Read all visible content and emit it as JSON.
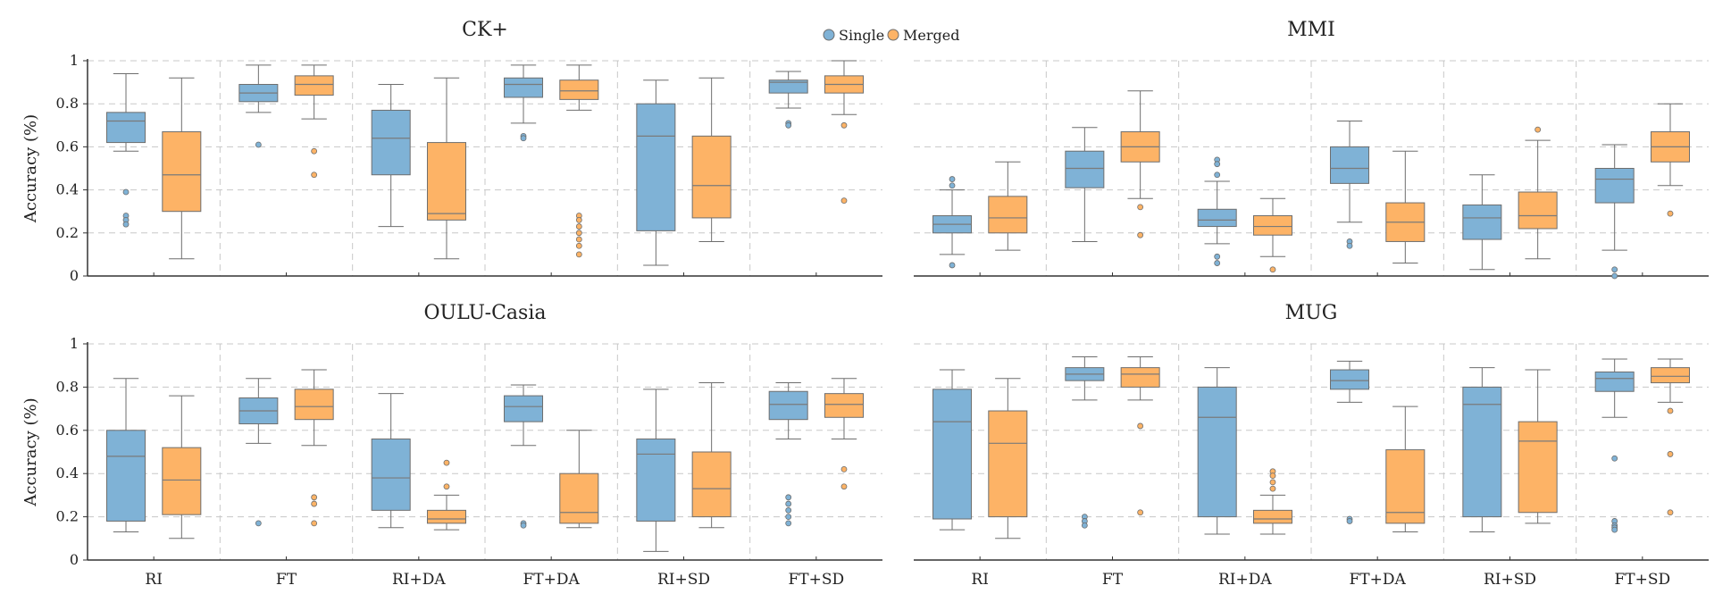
{
  "legend": [
    {
      "label": "Single",
      "color": "#7fb2d6"
    },
    {
      "label": "Merged",
      "color": "#fdb366"
    }
  ],
  "colors": {
    "single_fill": "#7fb2d6",
    "merged_fill": "#fdb366",
    "box_stroke": "#6e6e6e",
    "grid": "#c8c8c8",
    "axis": "#333333"
  },
  "chart_data": [
    {
      "type": "box",
      "title": "CK+",
      "ylabel": "Accuracy (%)",
      "ylim": [
        0,
        1
      ],
      "yticks": [
        "0",
        "0.2",
        "0.4",
        "0.6",
        "0.8",
        "1"
      ],
      "grid": true,
      "categories": [
        "RI",
        "FT",
        "RI+DA",
        "FT+DA",
        "RI+SD",
        "FT+SD"
      ],
      "series": [
        {
          "name": "Single",
          "boxes": [
            {
              "min": 0.58,
              "q1": 0.62,
              "median": 0.72,
              "q3": 0.76,
              "max": 0.94,
              "outliers": [
                0.39,
                0.28,
                0.26,
                0.24
              ]
            },
            {
              "min": 0.76,
              "q1": 0.81,
              "median": 0.85,
              "q3": 0.89,
              "max": 0.98,
              "outliers": [
                0.61
              ]
            },
            {
              "min": 0.23,
              "q1": 0.47,
              "median": 0.64,
              "q3": 0.77,
              "max": 0.89,
              "outliers": []
            },
            {
              "min": 0.71,
              "q1": 0.83,
              "median": 0.89,
              "q3": 0.92,
              "max": 0.98,
              "outliers": [
                0.65,
                0.64
              ]
            },
            {
              "min": 0.05,
              "q1": 0.21,
              "median": 0.65,
              "q3": 0.8,
              "max": 0.91,
              "outliers": []
            },
            {
              "min": 0.78,
              "q1": 0.85,
              "median": 0.9,
              "q3": 0.91,
              "max": 0.95,
              "outliers": [
                0.71,
                0.7
              ]
            }
          ]
        },
        {
          "name": "Merged",
          "boxes": [
            {
              "min": 0.08,
              "q1": 0.3,
              "median": 0.47,
              "q3": 0.67,
              "max": 0.92,
              "outliers": []
            },
            {
              "min": 0.73,
              "q1": 0.84,
              "median": 0.89,
              "q3": 0.93,
              "max": 0.98,
              "outliers": [
                0.58,
                0.47
              ]
            },
            {
              "min": 0.08,
              "q1": 0.26,
              "median": 0.29,
              "q3": 0.62,
              "max": 0.92,
              "outliers": []
            },
            {
              "min": 0.77,
              "q1": 0.82,
              "median": 0.86,
              "q3": 0.91,
              "max": 0.98,
              "outliers": [
                0.28,
                0.26,
                0.23,
                0.2,
                0.17,
                0.14,
                0.1
              ]
            },
            {
              "min": 0.16,
              "q1": 0.27,
              "median": 0.42,
              "q3": 0.65,
              "max": 0.92,
              "outliers": []
            },
            {
              "min": 0.75,
              "q1": 0.85,
              "median": 0.89,
              "q3": 0.93,
              "max": 1.0,
              "outliers": [
                0.7,
                0.35
              ]
            }
          ]
        }
      ]
    },
    {
      "type": "box",
      "title": "MMI",
      "ylabel": "",
      "ylim": [
        0,
        1
      ],
      "yticks": [],
      "grid": true,
      "categories": [
        "RI",
        "FT",
        "RI+DA",
        "FT+DA",
        "RI+SD",
        "FT+SD"
      ],
      "series": [
        {
          "name": "Single",
          "boxes": [
            {
              "min": 0.1,
              "q1": 0.2,
              "median": 0.24,
              "q3": 0.28,
              "max": 0.4,
              "outliers": [
                0.45,
                0.42,
                0.05
              ]
            },
            {
              "min": 0.16,
              "q1": 0.41,
              "median": 0.5,
              "q3": 0.58,
              "max": 0.69,
              "outliers": []
            },
            {
              "min": 0.15,
              "q1": 0.23,
              "median": 0.26,
              "q3": 0.31,
              "max": 0.44,
              "outliers": [
                0.54,
                0.52,
                0.47,
                0.09,
                0.06
              ]
            },
            {
              "min": 0.25,
              "q1": 0.43,
              "median": 0.5,
              "q3": 0.6,
              "max": 0.72,
              "outliers": [
                0.16,
                0.14
              ]
            },
            {
              "min": 0.03,
              "q1": 0.17,
              "median": 0.27,
              "q3": 0.33,
              "max": 0.47,
              "outliers": []
            },
            {
              "min": 0.12,
              "q1": 0.34,
              "median": 0.45,
              "q3": 0.5,
              "max": 0.61,
              "outliers": [
                0.03,
                0.0
              ]
            }
          ]
        },
        {
          "name": "Merged",
          "boxes": [
            {
              "min": 0.12,
              "q1": 0.2,
              "median": 0.27,
              "q3": 0.37,
              "max": 0.53,
              "outliers": []
            },
            {
              "min": 0.36,
              "q1": 0.53,
              "median": 0.6,
              "q3": 0.67,
              "max": 0.86,
              "outliers": [
                0.32,
                0.19
              ]
            },
            {
              "min": 0.09,
              "q1": 0.19,
              "median": 0.23,
              "q3": 0.28,
              "max": 0.36,
              "outliers": [
                0.03
              ]
            },
            {
              "min": 0.06,
              "q1": 0.16,
              "median": 0.25,
              "q3": 0.34,
              "max": 0.58,
              "outliers": []
            },
            {
              "min": 0.08,
              "q1": 0.22,
              "median": 0.28,
              "q3": 0.39,
              "max": 0.63,
              "outliers": [
                0.68
              ]
            },
            {
              "min": 0.42,
              "q1": 0.53,
              "median": 0.6,
              "q3": 0.67,
              "max": 0.8,
              "outliers": [
                0.29
              ]
            }
          ]
        }
      ]
    },
    {
      "type": "box",
      "title": "OULU-Casia",
      "ylabel": "Accuracy (%)",
      "ylim": [
        0,
        1
      ],
      "yticks": [
        "0",
        "0.2",
        "0.4",
        "0.6",
        "0.8",
        "1"
      ],
      "grid": true,
      "categories": [
        "RI",
        "FT",
        "RI+DA",
        "FT+DA",
        "RI+SD",
        "FT+SD"
      ],
      "series": [
        {
          "name": "Single",
          "boxes": [
            {
              "min": 0.13,
              "q1": 0.18,
              "median": 0.48,
              "q3": 0.6,
              "max": 0.84,
              "outliers": []
            },
            {
              "min": 0.54,
              "q1": 0.63,
              "median": 0.69,
              "q3": 0.75,
              "max": 0.84,
              "outliers": [
                0.17
              ]
            },
            {
              "min": 0.15,
              "q1": 0.23,
              "median": 0.38,
              "q3": 0.56,
              "max": 0.77,
              "outliers": []
            },
            {
              "min": 0.53,
              "q1": 0.64,
              "median": 0.71,
              "q3": 0.76,
              "max": 0.81,
              "outliers": [
                0.17,
                0.16
              ]
            },
            {
              "min": 0.04,
              "q1": 0.18,
              "median": 0.49,
              "q3": 0.56,
              "max": 0.79,
              "outliers": []
            },
            {
              "min": 0.56,
              "q1": 0.65,
              "median": 0.72,
              "q3": 0.78,
              "max": 0.82,
              "outliers": [
                0.29,
                0.26,
                0.23,
                0.2,
                0.17
              ]
            }
          ]
        },
        {
          "name": "Merged",
          "boxes": [
            {
              "min": 0.1,
              "q1": 0.21,
              "median": 0.37,
              "q3": 0.52,
              "max": 0.76,
              "outliers": []
            },
            {
              "min": 0.53,
              "q1": 0.65,
              "median": 0.71,
              "q3": 0.79,
              "max": 0.88,
              "outliers": [
                0.29,
                0.26,
                0.17
              ]
            },
            {
              "min": 0.14,
              "q1": 0.17,
              "median": 0.19,
              "q3": 0.23,
              "max": 0.3,
              "outliers": [
                0.45,
                0.34
              ]
            },
            {
              "min": 0.15,
              "q1": 0.17,
              "median": 0.22,
              "q3": 0.4,
              "max": 0.6,
              "outliers": []
            },
            {
              "min": 0.15,
              "q1": 0.2,
              "median": 0.33,
              "q3": 0.5,
              "max": 0.82,
              "outliers": []
            },
            {
              "min": 0.56,
              "q1": 0.66,
              "median": 0.72,
              "q3": 0.77,
              "max": 0.84,
              "outliers": [
                0.42,
                0.34
              ]
            }
          ]
        }
      ]
    },
    {
      "type": "box",
      "title": "MUG",
      "ylabel": "",
      "ylim": [
        0,
        1
      ],
      "yticks": [],
      "grid": true,
      "categories": [
        "RI",
        "FT",
        "RI+DA",
        "FT+DA",
        "RI+SD",
        "FT+SD"
      ],
      "series": [
        {
          "name": "Single",
          "boxes": [
            {
              "min": 0.14,
              "q1": 0.19,
              "median": 0.64,
              "q3": 0.79,
              "max": 0.88,
              "outliers": []
            },
            {
              "min": 0.74,
              "q1": 0.83,
              "median": 0.86,
              "q3": 0.89,
              "max": 0.94,
              "outliers": [
                0.2,
                0.18,
                0.16
              ]
            },
            {
              "min": 0.12,
              "q1": 0.2,
              "median": 0.66,
              "q3": 0.8,
              "max": 0.89,
              "outliers": []
            },
            {
              "min": 0.73,
              "q1": 0.79,
              "median": 0.83,
              "q3": 0.88,
              "max": 0.92,
              "outliers": [
                0.19,
                0.18
              ]
            },
            {
              "min": 0.13,
              "q1": 0.2,
              "median": 0.72,
              "q3": 0.8,
              "max": 0.89,
              "outliers": []
            },
            {
              "min": 0.66,
              "q1": 0.78,
              "median": 0.84,
              "q3": 0.87,
              "max": 0.93,
              "outliers": [
                0.47,
                0.18,
                0.16,
                0.15,
                0.14
              ]
            }
          ]
        },
        {
          "name": "Merged",
          "boxes": [
            {
              "min": 0.1,
              "q1": 0.2,
              "median": 0.54,
              "q3": 0.69,
              "max": 0.84,
              "outliers": []
            },
            {
              "min": 0.74,
              "q1": 0.8,
              "median": 0.86,
              "q3": 0.89,
              "max": 0.94,
              "outliers": [
                0.62,
                0.22
              ]
            },
            {
              "min": 0.12,
              "q1": 0.17,
              "median": 0.19,
              "q3": 0.23,
              "max": 0.3,
              "outliers": [
                0.41,
                0.39,
                0.36,
                0.33
              ]
            },
            {
              "min": 0.13,
              "q1": 0.17,
              "median": 0.22,
              "q3": 0.51,
              "max": 0.71,
              "outliers": []
            },
            {
              "min": 0.17,
              "q1": 0.22,
              "median": 0.55,
              "q3": 0.64,
              "max": 0.88,
              "outliers": []
            },
            {
              "min": 0.73,
              "q1": 0.82,
              "median": 0.85,
              "q3": 0.89,
              "max": 0.93,
              "outliers": [
                0.69,
                0.49,
                0.22
              ]
            }
          ]
        }
      ]
    }
  ]
}
